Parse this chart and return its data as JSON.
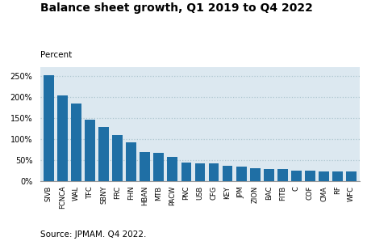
{
  "title": "Balance sheet growth, Q1 2019 to Q4 2022",
  "ylabel": "Percent",
  "source": "Source: JPMAM. Q4 2022.",
  "background_color": "#dce8f0",
  "bar_color": "#1f6fa5",
  "fig_background": "#ffffff",
  "categories": [
    "SIVB",
    "FCNCA",
    "WAL",
    "TFC",
    "SBNY",
    "FRC",
    "FHN",
    "HBAN",
    "MTB",
    "PACW",
    "PNC",
    "USB",
    "CFG",
    "KEY",
    "JPM",
    "ZION",
    "BAC",
    "FITB",
    "C",
    "COF",
    "CMA",
    "RF",
    "WFC"
  ],
  "values": [
    252,
    204,
    185,
    145,
    128,
    109,
    92,
    69,
    67,
    57,
    43,
    42,
    41,
    35,
    34,
    30,
    28,
    27,
    25,
    24,
    23,
    22,
    22
  ],
  "ylim": [
    0,
    270
  ],
  "yticks": [
    0,
    50,
    100,
    150,
    200,
    250
  ],
  "ytick_labels": [
    "0%",
    "50%",
    "100%",
    "150%",
    "200%",
    "250%"
  ],
  "grid_color": "#aec6d0",
  "title_fontsize": 10,
  "tick_fontsize": 7,
  "xtick_fontsize": 6,
  "source_fontsize": 7.5
}
